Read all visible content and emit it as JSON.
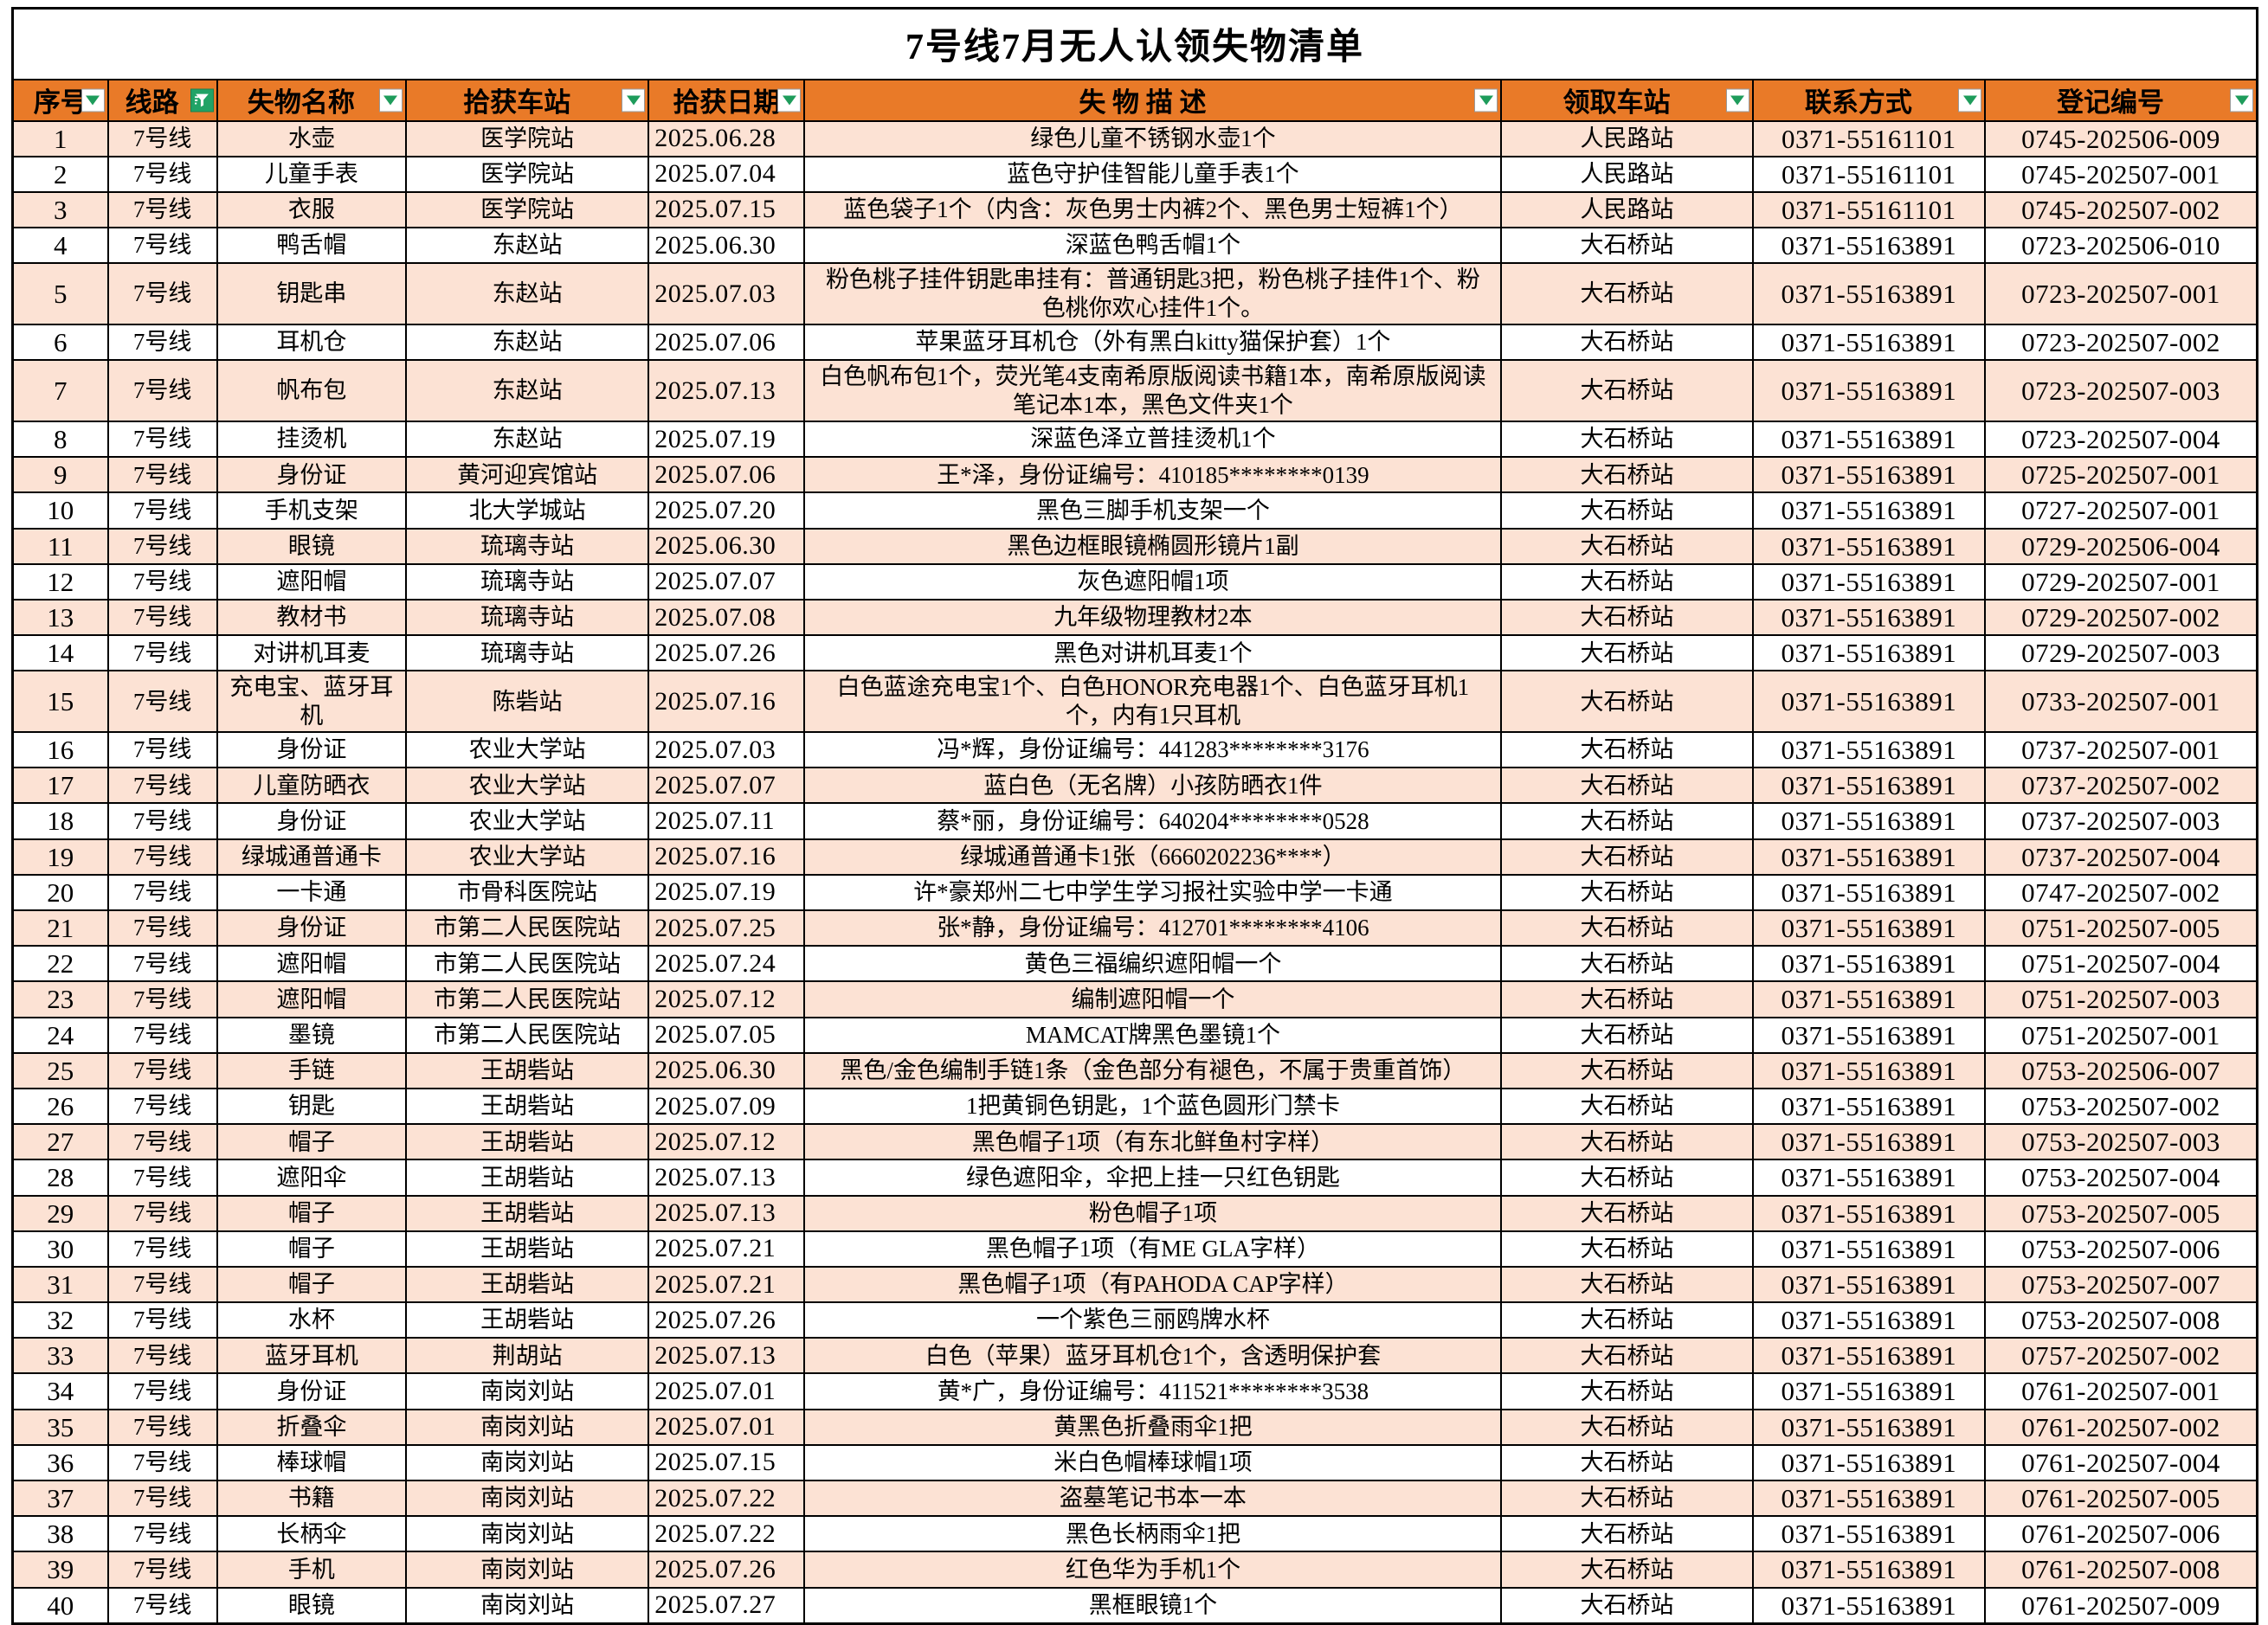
{
  "title": "7号线7月无人认领失物清单",
  "colors": {
    "header_bg": "#E97A28",
    "row_alt_bg": "#FCE2D4",
    "row_bg": "#FFFFFF",
    "border": "#000000",
    "filter_arrow_green": "#1E9C5B",
    "active_filter_bg": "#21A366"
  },
  "columns": [
    {
      "key": "seq",
      "label": "序号",
      "filter": "menu"
    },
    {
      "key": "line",
      "label": "线路",
      "filter": "active"
    },
    {
      "key": "item",
      "label": "失物名称",
      "filter": "menu"
    },
    {
      "key": "found_station",
      "label": "拾获车站",
      "filter": "menu"
    },
    {
      "key": "found_date",
      "label": "拾获日期",
      "filter": "menu"
    },
    {
      "key": "description",
      "label": "失 物 描 述",
      "filter": "menu"
    },
    {
      "key": "claim_station",
      "label": "领取车站",
      "filter": "menu"
    },
    {
      "key": "contact",
      "label": "联系方式",
      "filter": "menu"
    },
    {
      "key": "reg_no",
      "label": "登记编号",
      "filter": "menu"
    }
  ],
  "rows": [
    [
      "1",
      "7号线",
      "水壶",
      "医学院站",
      "2025.06.28",
      "绿色儿童不锈钢水壶1个",
      "人民路站",
      "0371-55161101",
      "0745-202506-009"
    ],
    [
      "2",
      "7号线",
      "儿童手表",
      "医学院站",
      "2025.07.04",
      "蓝色守护佳智能儿童手表1个",
      "人民路站",
      "0371-55161101",
      "0745-202507-001"
    ],
    [
      "3",
      "7号线",
      "衣服",
      "医学院站",
      "2025.07.15",
      "蓝色袋子1个（内含：灰色男士内裤2个、黑色男士短裤1个）",
      "人民路站",
      "0371-55161101",
      "0745-202507-002"
    ],
    [
      "4",
      "7号线",
      "鸭舌帽",
      "东赵站",
      "2025.06.30",
      "深蓝色鸭舌帽1个",
      "大石桥站",
      "0371-55163891",
      "0723-202506-010"
    ],
    [
      "5",
      "7号线",
      "钥匙串",
      "东赵站",
      "2025.07.03",
      "粉色桃子挂件钥匙串挂有：普通钥匙3把，粉色桃子挂件1个、粉色桃你欢心挂件1个。",
      "大石桥站",
      "0371-55163891",
      "0723-202507-001"
    ],
    [
      "6",
      "7号线",
      "耳机仓",
      "东赵站",
      "2025.07.06",
      "苹果蓝牙耳机仓（外有黑白kitty猫保护套）1个",
      "大石桥站",
      "0371-55163891",
      "0723-202507-002"
    ],
    [
      "7",
      "7号线",
      "帆布包",
      "东赵站",
      "2025.07.13",
      "白色帆布包1个，荧光笔4支南希原版阅读书籍1本，南希原版阅读笔记本1本，黑色文件夹1个",
      "大石桥站",
      "0371-55163891",
      "0723-202507-003"
    ],
    [
      "8",
      "7号线",
      "挂烫机",
      "东赵站",
      "2025.07.19",
      "深蓝色泽立普挂烫机1个",
      "大石桥站",
      "0371-55163891",
      "0723-202507-004"
    ],
    [
      "9",
      "7号线",
      "身份证",
      "黄河迎宾馆站",
      "2025.07.06",
      "王*泽，身份证编号：410185********0139",
      "大石桥站",
      "0371-55163891",
      "0725-202507-001"
    ],
    [
      "10",
      "7号线",
      "手机支架",
      "北大学城站",
      "2025.07.20",
      "黑色三脚手机支架一个",
      "大石桥站",
      "0371-55163891",
      "0727-202507-001"
    ],
    [
      "11",
      "7号线",
      "眼镜",
      "琉璃寺站",
      "2025.06.30",
      "黑色边框眼镜椭圆形镜片1副",
      "大石桥站",
      "0371-55163891",
      "0729-202506-004"
    ],
    [
      "12",
      "7号线",
      "遮阳帽",
      "琉璃寺站",
      "2025.07.07",
      "灰色遮阳帽1项",
      "大石桥站",
      "0371-55163891",
      "0729-202507-001"
    ],
    [
      "13",
      "7号线",
      "教材书",
      "琉璃寺站",
      "2025.07.08",
      "九年级物理教材2本",
      "大石桥站",
      "0371-55163891",
      "0729-202507-002"
    ],
    [
      "14",
      "7号线",
      "对讲机耳麦",
      "琉璃寺站",
      "2025.07.26",
      "黑色对讲机耳麦1个",
      "大石桥站",
      "0371-55163891",
      "0729-202507-003"
    ],
    [
      "15",
      "7号线",
      "充电宝、蓝牙耳机",
      "陈砦站",
      "2025.07.16",
      "白色蓝途充电宝1个、白色HONOR充电器1个、白色蓝牙耳机1个，内有1只耳机",
      "大石桥站",
      "0371-55163891",
      "0733-202507-001"
    ],
    [
      "16",
      "7号线",
      "身份证",
      "农业大学站",
      "2025.07.03",
      "冯*辉，身份证编号：441283********3176",
      "大石桥站",
      "0371-55163891",
      "0737-202507-001"
    ],
    [
      "17",
      "7号线",
      "儿童防晒衣",
      "农业大学站",
      "2025.07.07",
      "蓝白色（无名牌）小孩防晒衣1件",
      "大石桥站",
      "0371-55163891",
      "0737-202507-002"
    ],
    [
      "18",
      "7号线",
      "身份证",
      "农业大学站",
      "2025.07.11",
      "蔡*丽，身份证编号：640204********0528",
      "大石桥站",
      "0371-55163891",
      "0737-202507-003"
    ],
    [
      "19",
      "7号线",
      "绿城通普通卡",
      "农业大学站",
      "2025.07.16",
      "绿城通普通卡1张（6660202236****）",
      "大石桥站",
      "0371-55163891",
      "0737-202507-004"
    ],
    [
      "20",
      "7号线",
      "一卡通",
      "市骨科医院站",
      "2025.07.19",
      "许*豪郑州二七中学生学习报社实验中学一卡通",
      "大石桥站",
      "0371-55163891",
      "0747-202507-002"
    ],
    [
      "21",
      "7号线",
      "身份证",
      "市第二人民医院站",
      "2025.07.25",
      "张*静，身份证编号：412701********4106",
      "大石桥站",
      "0371-55163891",
      "0751-202507-005"
    ],
    [
      "22",
      "7号线",
      "遮阳帽",
      "市第二人民医院站",
      "2025.07.24",
      "黄色三福编织遮阳帽一个",
      "大石桥站",
      "0371-55163891",
      "0751-202507-004"
    ],
    [
      "23",
      "7号线",
      "遮阳帽",
      "市第二人民医院站",
      "2025.07.12",
      "编制遮阳帽一个",
      "大石桥站",
      "0371-55163891",
      "0751-202507-003"
    ],
    [
      "24",
      "7号线",
      "墨镜",
      "市第二人民医院站",
      "2025.07.05",
      "MAMCAT牌黑色墨镜1个",
      "大石桥站",
      "0371-55163891",
      "0751-202507-001"
    ],
    [
      "25",
      "7号线",
      "手链",
      "王胡砦站",
      "2025.06.30",
      "黑色/金色编制手链1条（金色部分有褪色，不属于贵重首饰）",
      "大石桥站",
      "0371-55163891",
      "0753-202506-007"
    ],
    [
      "26",
      "7号线",
      "钥匙",
      "王胡砦站",
      "2025.07.09",
      "1把黄铜色钥匙，1个蓝色圆形门禁卡",
      "大石桥站",
      "0371-55163891",
      "0753-202507-002"
    ],
    [
      "27",
      "7号线",
      "帽子",
      "王胡砦站",
      "2025.07.12",
      "黑色帽子1项（有东北鲜鱼村字样）",
      "大石桥站",
      "0371-55163891",
      "0753-202507-003"
    ],
    [
      "28",
      "7号线",
      "遮阳伞",
      "王胡砦站",
      "2025.07.13",
      "绿色遮阳伞，伞把上挂一只红色钥匙",
      "大石桥站",
      "0371-55163891",
      "0753-202507-004"
    ],
    [
      "29",
      "7号线",
      "帽子",
      "王胡砦站",
      "2025.07.13",
      "粉色帽子1项",
      "大石桥站",
      "0371-55163891",
      "0753-202507-005"
    ],
    [
      "30",
      "7号线",
      "帽子",
      "王胡砦站",
      "2025.07.21",
      "黑色帽子1项（有ME GLA字样）",
      "大石桥站",
      "0371-55163891",
      "0753-202507-006"
    ],
    [
      "31",
      "7号线",
      "帽子",
      "王胡砦站",
      "2025.07.21",
      "黑色帽子1项（有PAHODA CAP字样）",
      "大石桥站",
      "0371-55163891",
      "0753-202507-007"
    ],
    [
      "32",
      "7号线",
      "水杯",
      "王胡砦站",
      "2025.07.26",
      "一个紫色三丽鸥牌水杯",
      "大石桥站",
      "0371-55163891",
      "0753-202507-008"
    ],
    [
      "33",
      "7号线",
      "蓝牙耳机",
      "荆胡站",
      "2025.07.13",
      "白色（苹果）蓝牙耳机仓1个，含透明保护套",
      "大石桥站",
      "0371-55163891",
      "0757-202507-002"
    ],
    [
      "34",
      "7号线",
      "身份证",
      "南岗刘站",
      "2025.07.01",
      "黄*广，身份证编号：411521********3538",
      "大石桥站",
      "0371-55163891",
      "0761-202507-001"
    ],
    [
      "35",
      "7号线",
      "折叠伞",
      "南岗刘站",
      "2025.07.01",
      "黄黑色折叠雨伞1把",
      "大石桥站",
      "0371-55163891",
      "0761-202507-002"
    ],
    [
      "36",
      "7号线",
      "棒球帽",
      "南岗刘站",
      "2025.07.15",
      "米白色帽棒球帽1项",
      "大石桥站",
      "0371-55163891",
      "0761-202507-004"
    ],
    [
      "37",
      "7号线",
      "书籍",
      "南岗刘站",
      "2025.07.22",
      "盗墓笔记书本一本",
      "大石桥站",
      "0371-55163891",
      "0761-202507-005"
    ],
    [
      "38",
      "7号线",
      "长柄伞",
      "南岗刘站",
      "2025.07.22",
      "黑色长柄雨伞1把",
      "大石桥站",
      "0371-55163891",
      "0761-202507-006"
    ],
    [
      "39",
      "7号线",
      "手机",
      "南岗刘站",
      "2025.07.26",
      "红色华为手机1个",
      "大石桥站",
      "0371-55163891",
      "0761-202507-008"
    ],
    [
      "40",
      "7号线",
      "眼镜",
      "南岗刘站",
      "2025.07.27",
      "黑框眼镜1个",
      "大石桥站",
      "0371-55163891",
      "0761-202507-009"
    ]
  ]
}
